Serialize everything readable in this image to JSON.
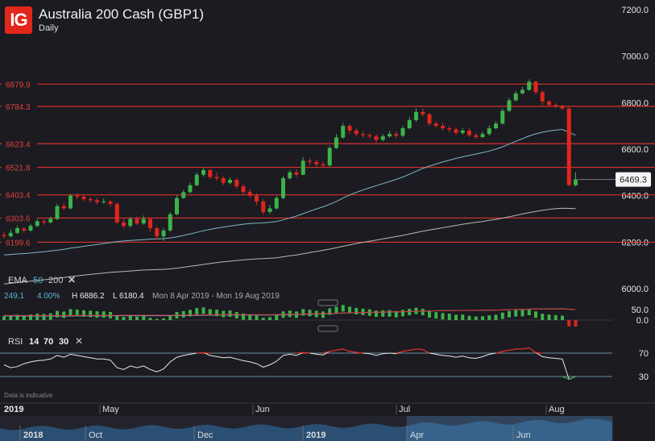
{
  "header": {
    "logo_text": "IG",
    "title": "Australia 200 Cash (GBP1)",
    "timeframe": "Daily"
  },
  "chart_data": {
    "type": "candlestick",
    "price_axis": {
      "min": 6000,
      "max": 7200,
      "ticks": [
        "7200.0",
        "7000.0",
        "6800.0",
        "6600.0",
        "6400.0",
        "6200.0",
        "6000.0"
      ]
    },
    "levels": [
      {
        "label": "6879.9",
        "value": 6879.9
      },
      {
        "label": "6784.3",
        "value": 6784.3
      },
      {
        "label": "6623.4",
        "value": 6623.4
      },
      {
        "label": "6521.8",
        "value": 6521.8
      },
      {
        "label": "6403.4",
        "value": 6403.4
      },
      {
        "label": "6303.6",
        "value": 6303.6
      },
      {
        "label": "6199.6",
        "value": 6199.6
      }
    ],
    "last_price": {
      "label": "6469.3",
      "value": 6469.3
    },
    "month_labels": [
      "May",
      "Jun",
      "Jul",
      "Aug"
    ],
    "year_label": "2019",
    "candles": [
      [
        6230,
        6225,
        6245,
        6215
      ],
      [
        6225,
        6240,
        6255,
        6220
      ],
      [
        6240,
        6260,
        6270,
        6235
      ],
      [
        6258,
        6250,
        6265,
        6240
      ],
      [
        6250,
        6270,
        6278,
        6245
      ],
      [
        6270,
        6290,
        6300,
        6265
      ],
      [
        6290,
        6285,
        6298,
        6275
      ],
      [
        6285,
        6300,
        6310,
        6280
      ],
      [
        6300,
        6355,
        6365,
        6295
      ],
      [
        6355,
        6345,
        6370,
        6338
      ],
      [
        6345,
        6400,
        6408,
        6340
      ],
      [
        6400,
        6395,
        6410,
        6385
      ],
      [
        6395,
        6385,
        6402,
        6375
      ],
      [
        6385,
        6380,
        6395,
        6370
      ],
      [
        6380,
        6372,
        6392,
        6362
      ],
      [
        6372,
        6375,
        6388,
        6365
      ],
      [
        6375,
        6365,
        6380,
        6352
      ],
      [
        6365,
        6285,
        6370,
        6278
      ],
      [
        6285,
        6270,
        6300,
        6258
      ],
      [
        6270,
        6300,
        6308,
        6262
      ],
      [
        6300,
        6280,
        6310,
        6272
      ],
      [
        6280,
        6300,
        6315,
        6275
      ],
      [
        6300,
        6260,
        6305,
        6245
      ],
      [
        6260,
        6225,
        6268,
        6210
      ],
      [
        6225,
        6250,
        6262,
        6205
      ],
      [
        6250,
        6320,
        6330,
        6245
      ],
      [
        6320,
        6390,
        6402,
        6315
      ],
      [
        6390,
        6415,
        6425,
        6385
      ],
      [
        6415,
        6445,
        6455,
        6410
      ],
      [
        6445,
        6490,
        6500,
        6440
      ],
      [
        6490,
        6510,
        6520,
        6482
      ],
      [
        6510,
        6480,
        6515,
        6470
      ],
      [
        6480,
        6475,
        6500,
        6465
      ],
      [
        6475,
        6455,
        6482,
        6445
      ],
      [
        6455,
        6468,
        6478,
        6448
      ],
      [
        6468,
        6440,
        6475,
        6430
      ],
      [
        6440,
        6415,
        6448,
        6405
      ],
      [
        6415,
        6400,
        6428,
        6390
      ],
      [
        6400,
        6375,
        6410,
        6360
      ],
      [
        6375,
        6330,
        6385,
        6318
      ],
      [
        6330,
        6345,
        6360,
        6320
      ],
      [
        6345,
        6390,
        6400,
        6340
      ],
      [
        6390,
        6475,
        6485,
        6385
      ],
      [
        6475,
        6500,
        6510,
        6468
      ],
      [
        6500,
        6490,
        6515,
        6480
      ],
      [
        6490,
        6550,
        6565,
        6488
      ],
      [
        6550,
        6545,
        6560,
        6532
      ],
      [
        6545,
        6535,
        6555,
        6525
      ],
      [
        6535,
        6530,
        6548,
        6520
      ],
      [
        6530,
        6605,
        6615,
        6525
      ],
      [
        6605,
        6650,
        6665,
        6600
      ],
      [
        6650,
        6700,
        6712,
        6645
      ],
      [
        6700,
        6680,
        6708,
        6665
      ],
      [
        6680,
        6665,
        6690,
        6655
      ],
      [
        6665,
        6660,
        6675,
        6648
      ],
      [
        6660,
        6655,
        6670,
        6645
      ],
      [
        6655,
        6640,
        6665,
        6628
      ],
      [
        6640,
        6655,
        6665,
        6633
      ],
      [
        6655,
        6665,
        6678,
        6650
      ],
      [
        6665,
        6658,
        6675,
        6648
      ],
      [
        6658,
        6690,
        6700,
        6652
      ],
      [
        6690,
        6725,
        6738,
        6685
      ],
      [
        6725,
        6760,
        6775,
        6718
      ],
      [
        6760,
        6750,
        6775,
        6740
      ],
      [
        6750,
        6710,
        6755,
        6700
      ],
      [
        6710,
        6700,
        6720,
        6692
      ],
      [
        6700,
        6690,
        6715,
        6680
      ],
      [
        6690,
        6685,
        6700,
        6672
      ],
      [
        6685,
        6670,
        6692,
        6660
      ],
      [
        6670,
        6680,
        6690,
        6662
      ],
      [
        6680,
        6660,
        6690,
        6652
      ],
      [
        6660,
        6652,
        6670,
        6645
      ],
      [
        6652,
        6665,
        6675,
        6648
      ],
      [
        6665,
        6690,
        6702,
        6658
      ],
      [
        6690,
        6710,
        6720,
        6685
      ],
      [
        6710,
        6765,
        6775,
        6705
      ],
      [
        6765,
        6810,
        6820,
        6760
      ],
      [
        6810,
        6840,
        6850,
        6805
      ],
      [
        6840,
        6855,
        6868,
        6835
      ],
      [
        6855,
        6890,
        6900,
        6850
      ],
      [
        6890,
        6845,
        6895,
        6835
      ],
      [
        6845,
        6805,
        6855,
        6790
      ],
      [
        6805,
        6790,
        6812,
        6780
      ],
      [
        6790,
        6783,
        6798,
        6775
      ],
      [
        6783,
        6775,
        6790,
        6768
      ],
      [
        6775,
        6445,
        6780,
        6440
      ],
      [
        6445,
        6470,
        6500,
        6440
      ]
    ],
    "ema50": [
      6145,
      6147,
      6149,
      6151,
      6153,
      6156,
      6159,
      6162,
      6165,
      6169,
      6174,
      6178,
      6182,
      6186,
      6190,
      6194,
      6198,
      6202,
      6205,
      6207,
      6209,
      6211,
      6213,
      6214,
      6215,
      6218,
      6223,
      6229,
      6235,
      6242,
      6249,
      6255,
      6260,
      6265,
      6269,
      6273,
      6277,
      6280,
      6282,
      6283,
      6285,
      6289,
      6296,
      6304,
      6312,
      6323,
      6333,
      6343,
      6352,
      6363,
      6375,
      6390,
      6403,
      6414,
      6424,
      6434,
      6443,
      6452,
      6461,
      6470,
      6480,
      6492,
      6505,
      6517,
      6527,
      6536,
      6545,
      6553,
      6560,
      6567,
      6573,
      6579,
      6585,
      6592,
      6600,
      6610,
      6622,
      6634,
      6645,
      6657,
      6666,
      6673,
      6678,
      6682,
      6685,
      6672,
      6660
    ],
    "ema200": [
      6020,
      6023,
      6026,
      6029,
      6032,
      6035,
      6038,
      6041,
      6044,
      6048,
      6052,
      6055,
      6058,
      6061,
      6064,
      6067,
      6070,
      6072,
      6074,
      6076,
      6078,
      6080,
      6081,
      6082,
      6083,
      6085,
      6088,
      6092,
      6096,
      6100,
      6104,
      6108,
      6112,
      6115,
      6118,
      6121,
      6124,
      6126,
      6128,
      6129,
      6131,
      6133,
      6137,
      6141,
      6145,
      6150,
      6155,
      6160,
      6165,
      6170,
      6176,
      6182,
      6188,
      6194,
      6199,
      6204,
      6209,
      6214,
      6219,
      6224,
      6229,
      6235,
      6241,
      6247,
      6252,
      6257,
      6262,
      6267,
      6272,
      6277,
      6281,
      6285,
      6289,
      6294,
      6298,
      6303,
      6309,
      6315,
      6321,
      6327,
      6332,
      6337,
      6341,
      6344,
      6346,
      6345,
      6344
    ],
    "ema_panel": {
      "label": "EMA",
      "params": [
        "50",
        "200"
      ],
      "value": "249.1",
      "pct": "4.00%",
      "high": "H 6886.2",
      "low": "L 6180.4",
      "range": "Mon 8 Apr 2019 - Mon 19 Aug 2019",
      "ticks": [
        "50.0",
        "0.0"
      ]
    },
    "rsi_panel": {
      "label": "RSI",
      "params": [
        "14",
        "70",
        "30"
      ],
      "ticks": [
        "70",
        "30"
      ]
    },
    "rsi": [
      50,
      45,
      47,
      52,
      55,
      57,
      58,
      60,
      66,
      63,
      68,
      66,
      64,
      62,
      60,
      60,
      58,
      45,
      42,
      48,
      45,
      48,
      42,
      38,
      43,
      55,
      63,
      66,
      68,
      70,
      71,
      66,
      64,
      62,
      63,
      60,
      57,
      55,
      52,
      46,
      50,
      56,
      66,
      68,
      66,
      71,
      70,
      68,
      67,
      73,
      75,
      77,
      73,
      71,
      70,
      69,
      66,
      69,
      70,
      69,
      73,
      75,
      77,
      76,
      70,
      68,
      66,
      65,
      63,
      65,
      62,
      61,
      64,
      68,
      70,
      73,
      75,
      77,
      77,
      79,
      71,
      64,
      62,
      61,
      60,
      25,
      30
    ],
    "footer": {
      "disclaimer": "Data is indicative",
      "year": "2019",
      "nav_labels": [
        "2018",
        "Oct",
        "Dec",
        "2019",
        "Apr",
        "Jun"
      ]
    }
  }
}
